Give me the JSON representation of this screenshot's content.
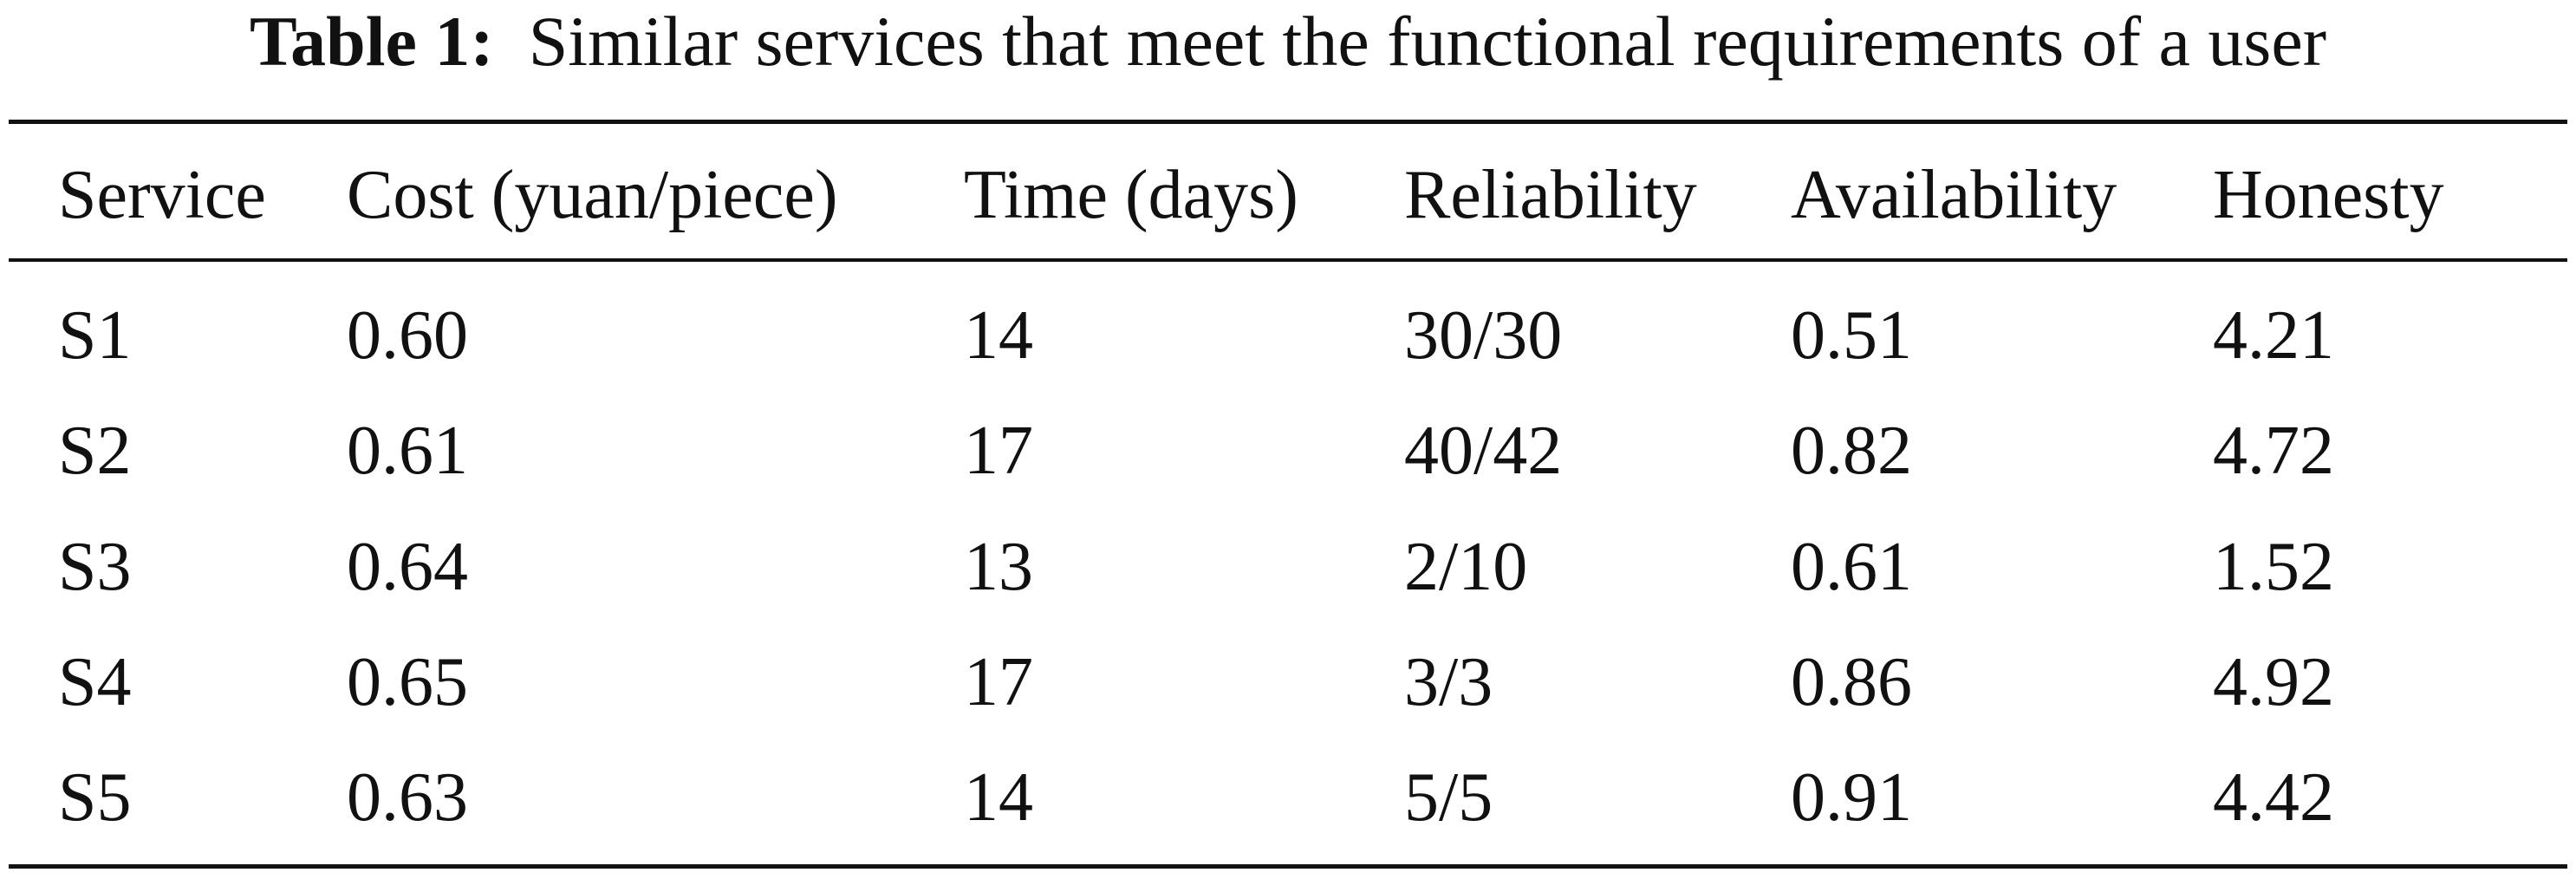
{
  "caption": {
    "label": "Table 1:",
    "text": "Similar services that meet the functional requirements of a user"
  },
  "table": {
    "headers": [
      "Service",
      "Cost (yuan/piece)",
      "Time (days)",
      "Reliability",
      "Availability",
      "Honesty"
    ],
    "rows": [
      [
        "S1",
        "0.60",
        "14",
        "30/30",
        "0.51",
        "4.21"
      ],
      [
        "S2",
        "0.61",
        "17",
        "40/42",
        "0.82",
        "4.72"
      ],
      [
        "S3",
        "0.64",
        "13",
        "2/10",
        "0.61",
        "1.52"
      ],
      [
        "S4",
        "0.65",
        "17",
        "3/3",
        "0.86",
        "4.92"
      ],
      [
        "S5",
        "0.63",
        "14",
        "5/5",
        "0.91",
        "4.42"
      ]
    ]
  }
}
